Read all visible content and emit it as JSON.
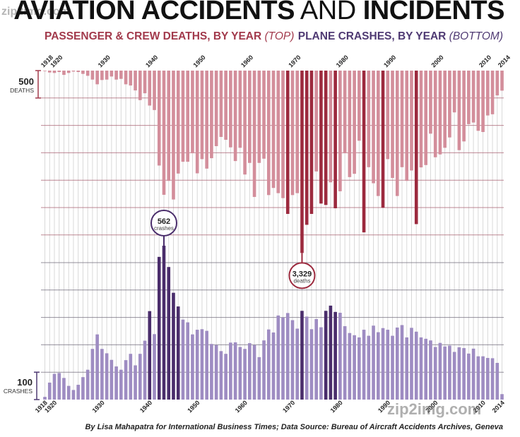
{
  "header": {
    "title_bold_1": "AVIATION ACCIDENTS",
    "title_thin": "AND",
    "title_bold_2": "INCIDENTS",
    "subtitle_left": "PASSENGER & CREW DEATHS, BY YEAR",
    "subtitle_left_note": "(TOP)",
    "subtitle_right": "PLANE CRASHES, BY YEAR",
    "subtitle_right_note": "(BOTTOM)"
  },
  "watermark": {
    "top": "zip2img.com",
    "bottom": "zip2img.com"
  },
  "credit": "By Lisa Mahapatra for International Business Times; Data Source: Bureau of Aircraft Accidents Archives, Geneva",
  "colors": {
    "deaths": "#d38e9b",
    "deaths_highlight": "#9c2a3e",
    "crashes": "#9e8cc2",
    "crashes_highlight": "#4a2d6b",
    "grid_deaths": "#a86070",
    "grid_crashes": "#6f6a7a",
    "year_lines": "#d8d8d8",
    "callout_deaths": "#9c2a3e",
    "callout_crashes": "#4a2d6b"
  },
  "chart_data": [
    {
      "type": "bar",
      "title": "Passenger & Crew Deaths, by Year (Top)",
      "orientation": "downward-from-top",
      "xlabel": "",
      "ylabel": "Deaths",
      "scale_label_value": "500",
      "scale_label_unit": "DEATHS",
      "grid_step": 500,
      "ylim": [
        0,
        3500
      ],
      "x_tick_labels": [
        "1918",
        "1920",
        "1930",
        "1940",
        "1950",
        "1960",
        "1970",
        "1980",
        "1990",
        "2000",
        "2010",
        "2014"
      ],
      "years_start": 1918,
      "years_end": 2014,
      "values": [
        10,
        35,
        43,
        26,
        78,
        43,
        17,
        26,
        60,
        95,
        164,
        250,
        172,
        164,
        108,
        164,
        151,
        250,
        272,
        362,
        539,
        414,
        638,
        720,
        1733,
        2267,
        2013,
        2353,
        1879,
        1664,
        1664,
        1509,
        1875,
        1616,
        1789,
        1599,
        1379,
        1211,
        1263,
        1401,
        1651,
        1409,
        1897,
        1685,
        2306,
        1685,
        1608,
        2272,
        2142,
        2237,
        2328,
        2616,
        2272,
        2237,
        3329,
        2815,
        2616,
        1841,
        2427,
        2453,
        2039,
        2513,
        2203,
        1509,
        1944,
        1884,
        1280,
        2953,
        1763,
        2056,
        2289,
        2504,
        1616,
        1961,
        2289,
        1763,
        2013,
        1823,
        2802,
        1767,
        1724,
        1151,
        1582,
        1530,
        1409,
        1220,
        763,
        1452,
        1293,
        978,
        948,
        1099,
        1121,
        819,
        797,
        453,
        366
      ],
      "highlight_years": [
        1969,
        1972,
        1973,
        1974,
        1976,
        1977,
        1979,
        1985,
        1989,
        1996
      ],
      "annotation": {
        "year": 1972,
        "value_text": "3,329",
        "unit_text": "deaths"
      }
    },
    {
      "type": "bar",
      "title": "Plane Crashes, by Year (Bottom)",
      "orientation": "upward-from-bottom",
      "xlabel": "",
      "ylabel": "Crashes",
      "scale_label_value": "100",
      "scale_label_unit": "CRASHES",
      "grid_step": 100,
      "ylim": [
        0,
        600
      ],
      "x_tick_labels": [
        "1918",
        "1920",
        "1930",
        "1940",
        "1950",
        "1960",
        "1970",
        "1980",
        "1990",
        "2000",
        "2010",
        "2014"
      ],
      "years_start": 1918,
      "years_end": 2014,
      "values": [
        10,
        62,
        94,
        97,
        79,
        50,
        35,
        54,
        82,
        109,
        185,
        238,
        185,
        169,
        145,
        121,
        109,
        144,
        167,
        125,
        167,
        215,
        323,
        239,
        521,
        562,
        484,
        390,
        340,
        292,
        282,
        238,
        255,
        257,
        251,
        203,
        199,
        177,
        167,
        208,
        209,
        192,
        185,
        206,
        199,
        155,
        216,
        256,
        245,
        307,
        300,
        316,
        290,
        259,
        324,
        303,
        257,
        294,
        264,
        324,
        343,
        320,
        317,
        268,
        243,
        235,
        227,
        255,
        233,
        270,
        246,
        261,
        255,
        233,
        263,
        272,
        227,
        262,
        248,
        227,
        222,
        216,
        192,
        207,
        194,
        197,
        174,
        191,
        188,
        168,
        186,
        158,
        158,
        152,
        151,
        134,
        20
      ],
      "highlight_years": [
        1940,
        1942,
        1943,
        1944,
        1945,
        1946,
        1972,
        1977,
        1978,
        1979
      ],
      "annotation": {
        "year": 1943,
        "value_text": "562",
        "unit_text": "crashes"
      }
    }
  ]
}
